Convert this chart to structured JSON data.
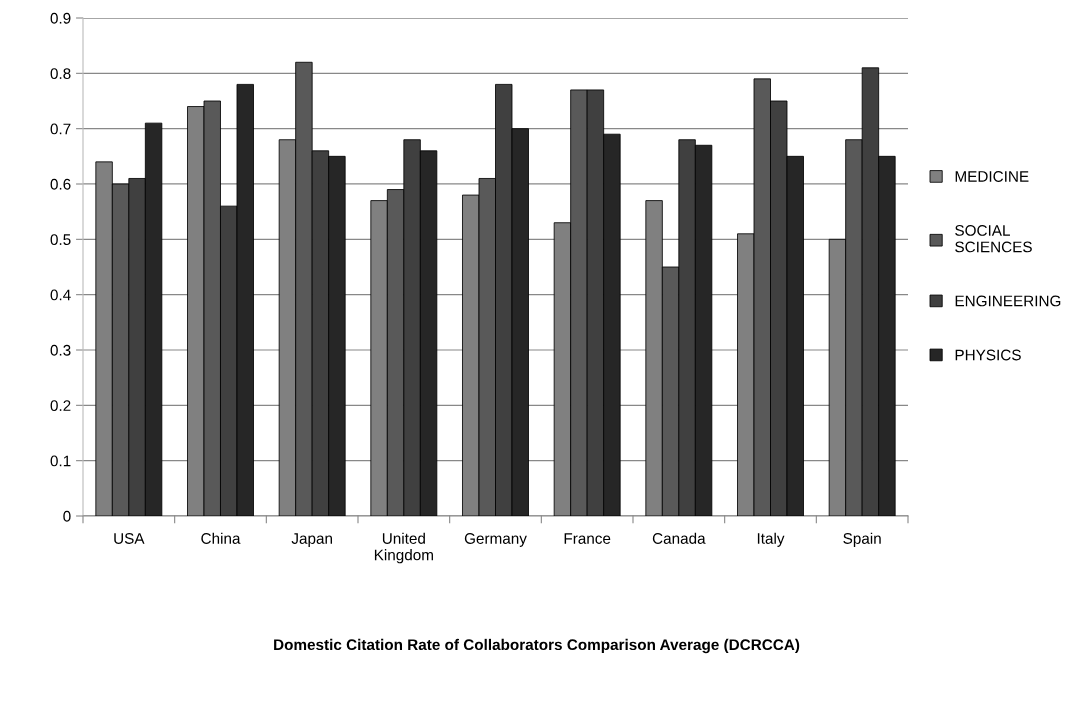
{
  "chart_data": {
    "type": "bar",
    "title": "Domestic Citation Rate of Collaborators Comparison Average (DCRCCA)",
    "categories": [
      "USA",
      "China",
      "Japan",
      "United\nKingdom",
      "Germany",
      "France",
      "Canada",
      "Italy",
      "Spain"
    ],
    "series": [
      {
        "name": "MEDICINE",
        "color": "#808080",
        "values": [
          0.64,
          0.74,
          0.68,
          0.57,
          0.58,
          0.53,
          0.57,
          0.51,
          0.5
        ]
      },
      {
        "name": "SOCIAL\nSCIENCES",
        "color": "#595959",
        "values": [
          0.6,
          0.75,
          0.82,
          0.59,
          0.61,
          0.77,
          0.45,
          0.79,
          0.68
        ]
      },
      {
        "name": "ENGINEERING",
        "color": "#404040",
        "values": [
          0.61,
          0.56,
          0.66,
          0.68,
          0.78,
          0.77,
          0.68,
          0.75,
          0.81
        ]
      },
      {
        "name": "PHYSICS",
        "color": "#262626",
        "values": [
          0.71,
          0.78,
          0.65,
          0.66,
          0.7,
          0.69,
          0.67,
          0.65,
          0.65
        ]
      }
    ],
    "ylim": [
      0,
      0.9
    ],
    "yticks": [
      0,
      0.1,
      0.2,
      0.3,
      0.4,
      0.5,
      0.6,
      0.7,
      0.8,
      0.9
    ],
    "grid": "y",
    "legend": "right"
  }
}
